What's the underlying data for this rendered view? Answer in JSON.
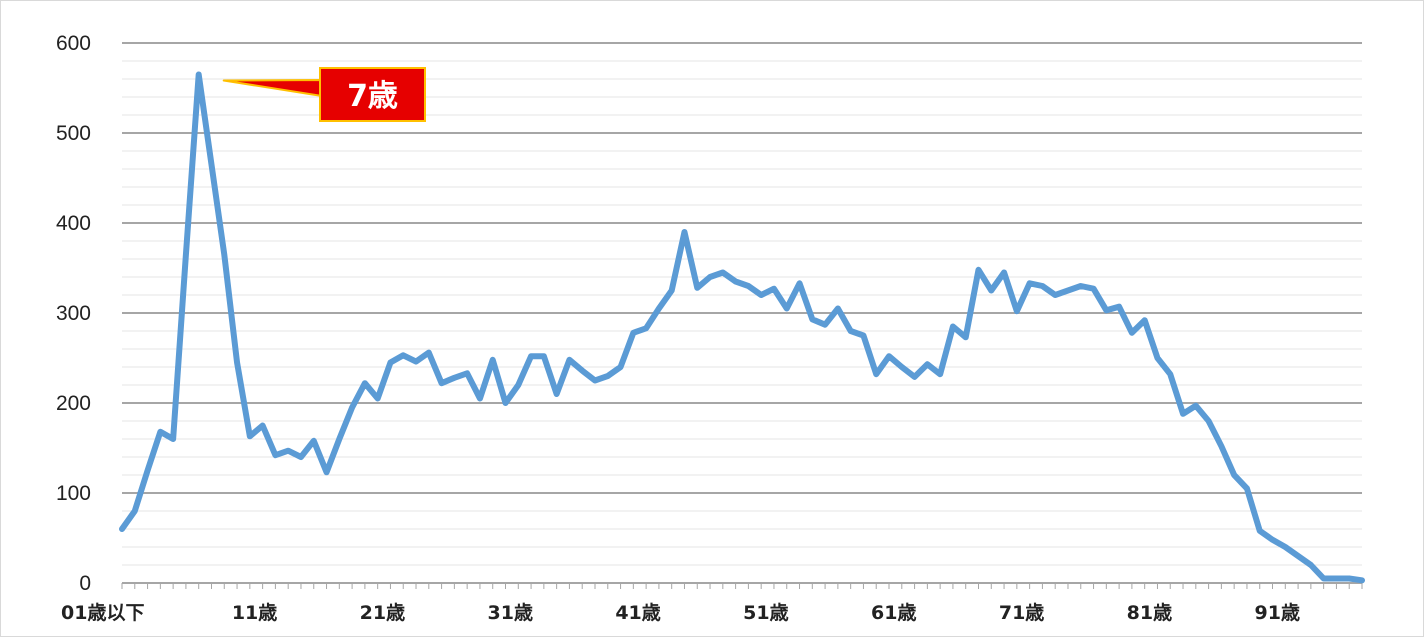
{
  "chart_data": {
    "type": "line",
    "title": "",
    "xlabel": "",
    "ylabel": "",
    "ylim": [
      0,
      600
    ],
    "ytick_values": [
      0,
      100,
      200,
      300,
      400,
      500,
      600
    ],
    "ytick_labels": [
      "0",
      "100",
      "200",
      "300",
      "400",
      "500",
      "600"
    ],
    "minor_gridline_step": 20,
    "xtick_labels": [
      {
        "index": 0,
        "label": "01歳以下"
      },
      {
        "index": 10,
        "label": "11歳"
      },
      {
        "index": 20,
        "label": "21歳"
      },
      {
        "index": 30,
        "label": "31歳"
      },
      {
        "index": 40,
        "label": "41歳"
      },
      {
        "index": 50,
        "label": "51歳"
      },
      {
        "index": 60,
        "label": "61歳"
      },
      {
        "index": 70,
        "label": "71歳"
      },
      {
        "index": 80,
        "label": "81歳"
      },
      {
        "index": 90,
        "label": "91歳"
      }
    ],
    "grid": true,
    "legend": "none",
    "line_color": "#5B9BD5",
    "series": [
      {
        "values": [
          60,
          80,
          125,
          168,
          160,
          365,
          565,
          465,
          365,
          245,
          163,
          175,
          142,
          147,
          140,
          158,
          123,
          160,
          195,
          222,
          205,
          245,
          253,
          246,
          256,
          222,
          228,
          233,
          205,
          248,
          200,
          220,
          252,
          252,
          210,
          248,
          236,
          225,
          230,
          240,
          278,
          283,
          305,
          325,
          390,
          328,
          340,
          345,
          335,
          330,
          320,
          327,
          305,
          333,
          293,
          287,
          305,
          280,
          275,
          232,
          252,
          240,
          229,
          243,
          232,
          285,
          273,
          348,
          325,
          345,
          302,
          333,
          330,
          320,
          325,
          330,
          327,
          303,
          307,
          278,
          292,
          250,
          232,
          188,
          197,
          180,
          152,
          120,
          105,
          58,
          48,
          40,
          30,
          20,
          5,
          5,
          5,
          3
        ]
      }
    ],
    "annotations": [
      {
        "text": "7歳",
        "point_index": 6,
        "box_color": "#E60000",
        "border_color": "#FFC000",
        "text_color": "#FFFFFF"
      }
    ]
  }
}
